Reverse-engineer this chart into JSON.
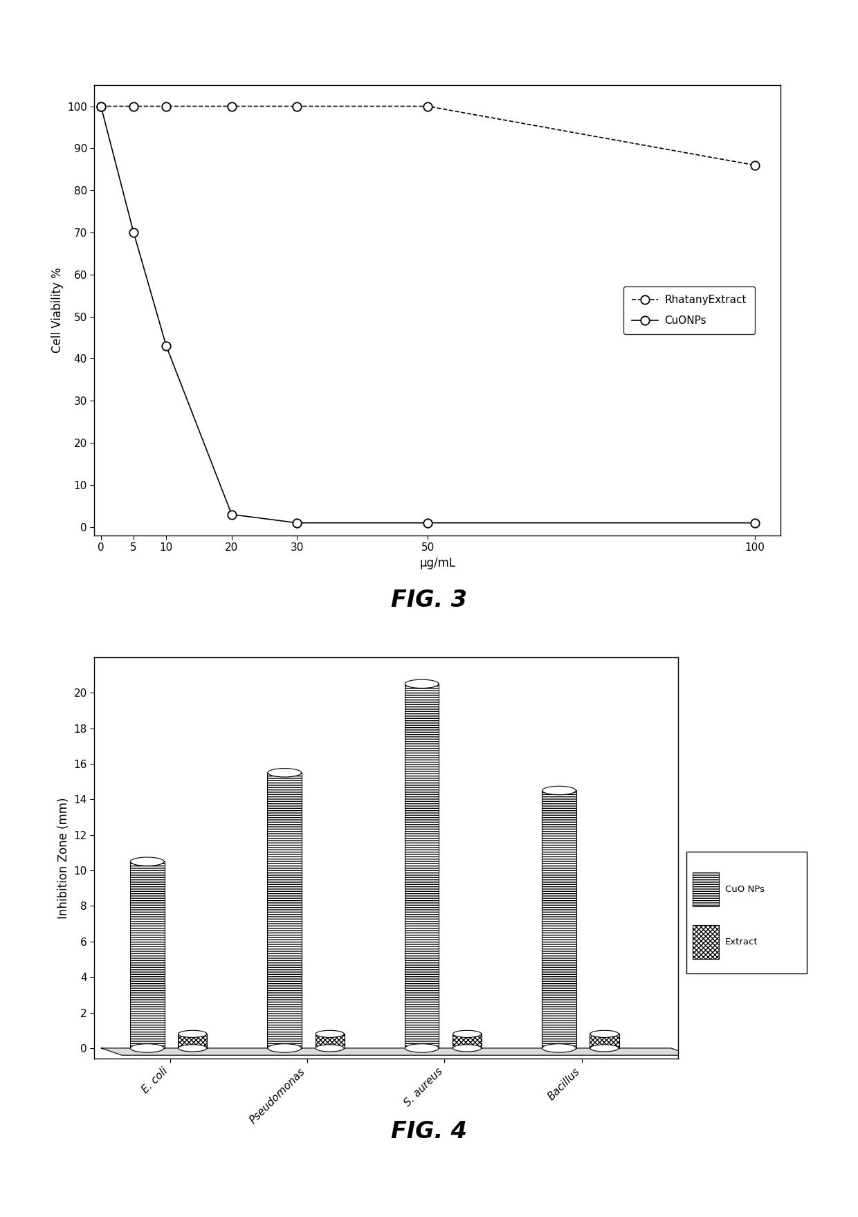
{
  "fig3": {
    "rhatany_x": [
      0,
      5,
      10,
      20,
      30,
      50,
      100
    ],
    "rhatany_y": [
      100,
      100,
      100,
      100,
      100,
      100,
      86
    ],
    "cuonps_x": [
      0,
      5,
      10,
      20,
      30,
      50,
      100
    ],
    "cuonps_y": [
      100,
      70,
      43,
      3,
      1,
      1,
      1
    ],
    "xlabel": "μg/mL",
    "ylabel": "Cell Viability %",
    "yticks": [
      0,
      10,
      20,
      30,
      40,
      50,
      60,
      70,
      80,
      90,
      100
    ],
    "xticks": [
      0,
      5,
      10,
      20,
      30,
      50,
      100
    ],
    "xlim": [
      0,
      100
    ],
    "ylim": [
      0,
      100
    ],
    "legend_labels": [
      "RhatanyExtract",
      "CuONPs"
    ],
    "fig_label": "FIG. 3"
  },
  "fig4": {
    "categories": [
      "E. coli",
      "Pseudomonas",
      "S. aureus",
      "Bacillus"
    ],
    "cuonps_values": [
      10.5,
      15.5,
      20.5,
      14.5
    ],
    "extract_values": [
      0.8,
      0.8,
      0.8,
      0.8
    ],
    "ylabel": "Inhibition Zone (mm)",
    "yticks": [
      0,
      2,
      4,
      6,
      8,
      10,
      12,
      14,
      16,
      18,
      20
    ],
    "ylim": [
      0,
      22
    ],
    "legend_labels": [
      "CuO NPs",
      "Extract"
    ],
    "fig_label": "FIG. 4"
  },
  "background_color": "#ffffff",
  "text_color": "#000000",
  "font_size": 11,
  "label_font_size": 12
}
